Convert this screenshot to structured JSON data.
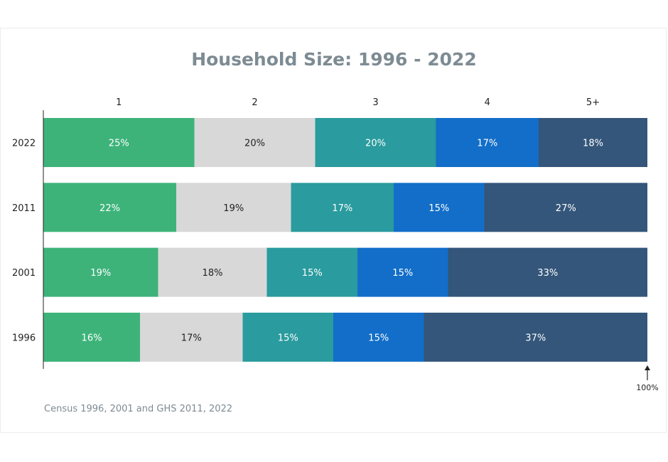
{
  "chart_data": {
    "type": "bar",
    "orientation": "horizontal",
    "stacked": true,
    "normalized": true,
    "title": "Household Size: 1996 - 2022",
    "categories": [
      "2022",
      "2011",
      "2001",
      "1996"
    ],
    "series": [
      {
        "name": "1",
        "values": [
          25,
          22,
          19,
          16
        ],
        "color": "#3db37a",
        "label_color": "#ffffff"
      },
      {
        "name": "2",
        "values": [
          20,
          19,
          18,
          17
        ],
        "color": "#d8d8d8",
        "label_color": "#222222"
      },
      {
        "name": "3",
        "values": [
          20,
          17,
          15,
          15
        ],
        "color": "#2a9b9e",
        "label_color": "#ffffff"
      },
      {
        "name": "4",
        "values": [
          17,
          15,
          15,
          15
        ],
        "color": "#126ec8",
        "label_color": "#ffffff"
      },
      {
        "name": "5+",
        "values": [
          18,
          27,
          33,
          37
        ],
        "color": "#34567a",
        "label_color": "#ffffff"
      }
    ],
    "value_suffix": "%",
    "end_label": "100%",
    "source": "Census 1996, 2001 and GHS 2011, 2022",
    "legend": "top"
  }
}
